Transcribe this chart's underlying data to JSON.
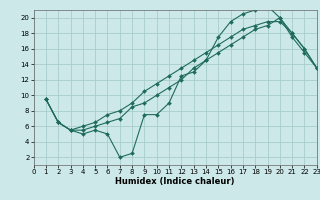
{
  "xlabel": "Humidex (Indice chaleur)",
  "bg_color": "#cce8e8",
  "line_color": "#1e6b5e",
  "grid_color": "#a8cccc",
  "xlim": [
    0,
    23
  ],
  "ylim": [
    1,
    21
  ],
  "xticks": [
    0,
    1,
    2,
    3,
    4,
    5,
    6,
    7,
    8,
    9,
    10,
    11,
    12,
    13,
    14,
    15,
    16,
    17,
    18,
    19,
    20,
    21,
    22,
    23
  ],
  "yticks": [
    2,
    4,
    6,
    8,
    10,
    12,
    14,
    16,
    18,
    20
  ],
  "line1_x": [
    1,
    2,
    3,
    4,
    5,
    6,
    7,
    8,
    9,
    10,
    11,
    12,
    13,
    14,
    15,
    16,
    17,
    18,
    19,
    20,
    21,
    22,
    23
  ],
  "line1_y": [
    9.5,
    6.5,
    5.5,
    5.0,
    5.5,
    5.0,
    2.0,
    2.5,
    7.5,
    7.5,
    9.0,
    12.5,
    13.0,
    14.5,
    17.5,
    19.5,
    20.5,
    21.0,
    21.5,
    20.0,
    18.0,
    16.0,
    13.5
  ],
  "line2_x": [
    1,
    2,
    3,
    4,
    5,
    6,
    7,
    8,
    9,
    10,
    11,
    12,
    13,
    14,
    15,
    16,
    17,
    18,
    19,
    20,
    21,
    22,
    23
  ],
  "line2_y": [
    9.5,
    6.5,
    5.5,
    6.0,
    6.5,
    7.5,
    8.0,
    9.0,
    10.5,
    11.5,
    12.5,
    13.5,
    14.5,
    15.5,
    16.5,
    17.5,
    18.5,
    19.0,
    19.5,
    19.5,
    18.0,
    16.0,
    13.5
  ],
  "line3_x": [
    1,
    2,
    3,
    4,
    5,
    6,
    7,
    8,
    9,
    10,
    11,
    12,
    13,
    14,
    15,
    16,
    17,
    18,
    19,
    20,
    21,
    22,
    23
  ],
  "line3_y": [
    9.5,
    6.5,
    5.5,
    5.5,
    6.0,
    6.5,
    7.0,
    8.5,
    9.0,
    10.0,
    11.0,
    12.0,
    13.5,
    14.5,
    15.5,
    16.5,
    17.5,
    18.5,
    19.0,
    20.0,
    17.5,
    15.5,
    13.5
  ]
}
